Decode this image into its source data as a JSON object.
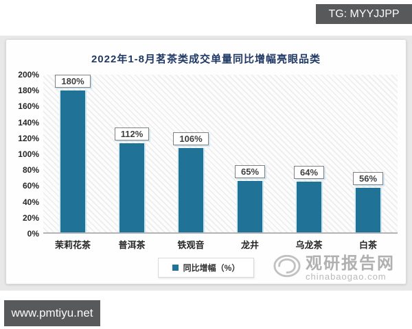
{
  "banners": {
    "tg": "TG: MYYJJPP",
    "site": "www.pmtiyu.net"
  },
  "chart_data": {
    "type": "bar",
    "title": "2022年1-8月茗茶类成交单量同比增幅亮眼品类",
    "categories": [
      "茉莉花茶",
      "普洱茶",
      "铁观音",
      "龙井",
      "乌龙茶",
      "白茶"
    ],
    "values": [
      180,
      112,
      106,
      65,
      64,
      56
    ],
    "data_labels": [
      "180%",
      "112%",
      "106%",
      "65%",
      "64%",
      "56%"
    ],
    "unit": "%",
    "xlabel": "",
    "ylabel": "",
    "ylim": [
      0,
      200
    ],
    "ytick_step": 20,
    "ytick_labels": [
      "0%",
      "20%",
      "40%",
      "60%",
      "80%",
      "100%",
      "120%",
      "140%",
      "160%",
      "180%",
      "200%"
    ],
    "grid": false,
    "legend": [
      "同比增幅（%）"
    ],
    "legend_position": "bottom",
    "bar_color": "#207396"
  },
  "watermark": {
    "name": "观研报告网",
    "domain": "chinabaogao.com"
  }
}
